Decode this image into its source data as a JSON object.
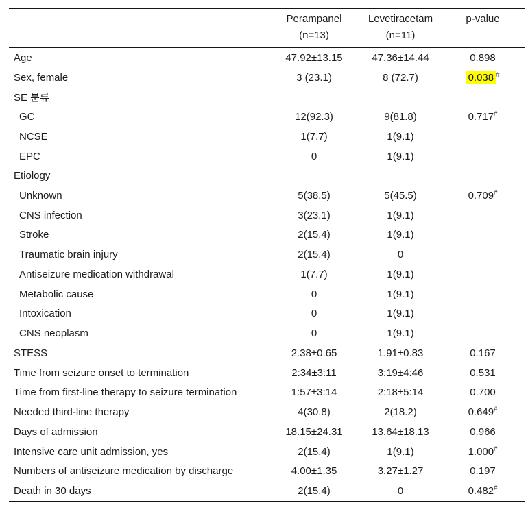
{
  "table": {
    "highlight_color": "#ffff00",
    "footnote_marker": "#",
    "header": {
      "label_col": "",
      "group1_name": "Perampanel",
      "group1_n": "(n=13)",
      "group2_name": "Levetiracetam",
      "group2_n": "(n=11)",
      "pvalue_col": "p-value"
    },
    "rows": [
      {
        "label": "Age",
        "indent": false,
        "perampanel": "47.92±13.15",
        "levetiracetam": "47.36±14.44",
        "p": "0.898",
        "p_sup": "",
        "highlight": false
      },
      {
        "label": "Sex, female",
        "indent": false,
        "perampanel": "3 (23.1)",
        "levetiracetam": "8 (72.7)",
        "p": "0.038",
        "p_sup": "#",
        "highlight": true
      },
      {
        "label": "SE 분류",
        "indent": false,
        "perampanel": "",
        "levetiracetam": "",
        "p": "",
        "p_sup": "",
        "highlight": false
      },
      {
        "label": "GC",
        "indent": true,
        "perampanel": "12(92.3)",
        "levetiracetam": "9(81.8)",
        "p": "0.717",
        "p_sup": "#",
        "highlight": false
      },
      {
        "label": "NCSE",
        "indent": true,
        "perampanel": "1(7.7)",
        "levetiracetam": "1(9.1)",
        "p": "",
        "p_sup": "",
        "highlight": false
      },
      {
        "label": "EPC",
        "indent": true,
        "perampanel": "0",
        "levetiracetam": "1(9.1)",
        "p": "",
        "p_sup": "",
        "highlight": false
      },
      {
        "label": "Etiology",
        "indent": false,
        "perampanel": "",
        "levetiracetam": "",
        "p": "",
        "p_sup": "",
        "highlight": false
      },
      {
        "label": "Unknown",
        "indent": true,
        "perampanel": "5(38.5)",
        "levetiracetam": "5(45.5)",
        "p": "0.709",
        "p_sup": "#",
        "highlight": false
      },
      {
        "label": "CNS infection",
        "indent": true,
        "perampanel": "3(23.1)",
        "levetiracetam": "1(9.1)",
        "p": "",
        "p_sup": "",
        "highlight": false
      },
      {
        "label": "Stroke",
        "indent": true,
        "perampanel": "2(15.4)",
        "levetiracetam": "1(9.1)",
        "p": "",
        "p_sup": "",
        "highlight": false
      },
      {
        "label": "Traumatic brain injury",
        "indent": true,
        "perampanel": "2(15.4)",
        "levetiracetam": "0",
        "p": "",
        "p_sup": "",
        "highlight": false
      },
      {
        "label": "Antiseizure medication withdrawal",
        "indent": true,
        "perampanel": "1(7.7)",
        "levetiracetam": "1(9.1)",
        "p": "",
        "p_sup": "",
        "highlight": false
      },
      {
        "label": "Metabolic cause",
        "indent": true,
        "perampanel": "0",
        "levetiracetam": "1(9.1)",
        "p": "",
        "p_sup": "",
        "highlight": false
      },
      {
        "label": "Intoxication",
        "indent": true,
        "perampanel": "0",
        "levetiracetam": "1(9.1)",
        "p": "",
        "p_sup": "",
        "highlight": false
      },
      {
        "label": "CNS neoplasm",
        "indent": true,
        "perampanel": "0",
        "levetiracetam": "1(9.1)",
        "p": "",
        "p_sup": "",
        "highlight": false
      },
      {
        "label": "STESS",
        "indent": false,
        "perampanel": "2.38±0.65",
        "levetiracetam": "1.91±0.83",
        "p": "0.167",
        "p_sup": "",
        "highlight": false
      },
      {
        "label": "Time from seizure onset to termination",
        "indent": false,
        "perampanel": "2:34±3:11",
        "levetiracetam": "3:19±4:46",
        "p": "0.531",
        "p_sup": "",
        "highlight": false
      },
      {
        "label": "Time from first-line therapy to seizure termination",
        "indent": false,
        "perampanel": "1:57±3:14",
        "levetiracetam": "2:18±5:14",
        "p": "0.700",
        "p_sup": "",
        "highlight": false
      },
      {
        "label": "Needed third-line therapy",
        "indent": false,
        "perampanel": "4(30.8)",
        "levetiracetam": "2(18.2)",
        "p": "0.649",
        "p_sup": "#",
        "highlight": false
      },
      {
        "label": "Days of admission",
        "indent": false,
        "perampanel": "18.15±24.31",
        "levetiracetam": "13.64±18.13",
        "p": "0.966",
        "p_sup": "",
        "highlight": false
      },
      {
        "label": "Intensive care unit admission, yes",
        "indent": false,
        "perampanel": "2(15.4)",
        "levetiracetam": "1(9.1)",
        "p": "1.000",
        "p_sup": "#",
        "highlight": false
      },
      {
        "label": "Numbers of antiseizure medication by discharge",
        "indent": false,
        "perampanel": "4.00±1.35",
        "levetiracetam": "3.27±1.27",
        "p": "0.197",
        "p_sup": "",
        "highlight": false
      },
      {
        "label": "Death in 30 days",
        "indent": false,
        "perampanel": "2(15.4)",
        "levetiracetam": "0",
        "p": "0.482",
        "p_sup": "#",
        "highlight": false
      }
    ]
  }
}
